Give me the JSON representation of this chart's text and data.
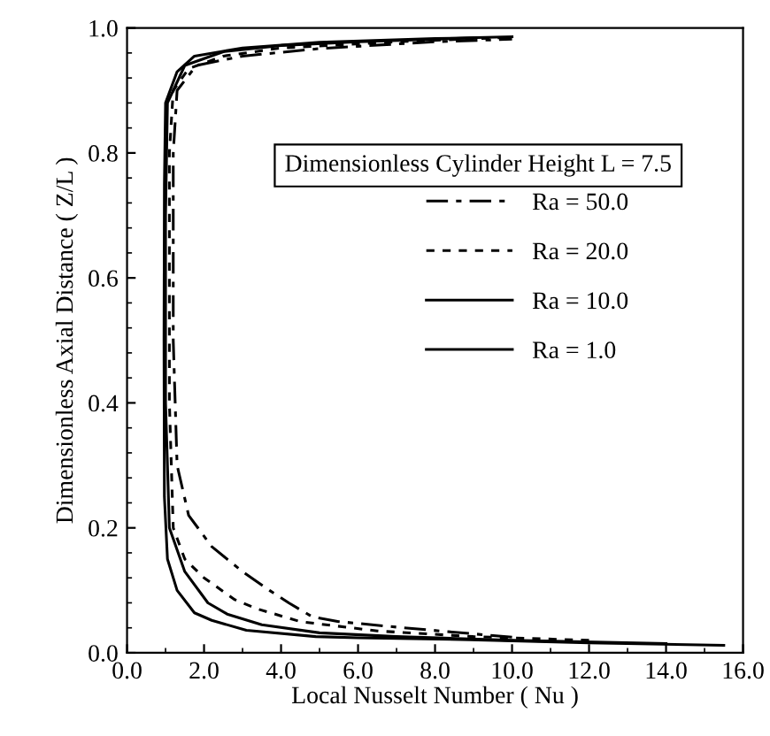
{
  "chart_data": {
    "type": "line",
    "xlabel": "Local Nusselt Number ( Nu )",
    "ylabel": "Dimensionless Axial Distance ( Z/L )",
    "annotations": [
      "Dimensionless Cylinder Height L = 7.5"
    ],
    "xlim": [
      0,
      16
    ],
    "ylim": [
      0,
      1
    ],
    "xticks": [
      {
        "value": 0,
        "label": "0.0"
      },
      {
        "value": 2,
        "label": "2.0"
      },
      {
        "value": 4,
        "label": "4.0"
      },
      {
        "value": 6,
        "label": "6.0"
      },
      {
        "value": 8,
        "label": "8.0"
      },
      {
        "value": 10,
        "label": "10.0"
      },
      {
        "value": 12,
        "label": "12.0"
      },
      {
        "value": 14,
        "label": "14.0"
      },
      {
        "value": 16,
        "label": "16.0"
      }
    ],
    "yticks": [
      {
        "value": 0,
        "label": "0.0"
      },
      {
        "value": 0.2,
        "label": "0.2"
      },
      {
        "value": 0.4,
        "label": "0.4"
      },
      {
        "value": 0.6,
        "label": "0.6"
      },
      {
        "value": 0.8,
        "label": "0.8"
      },
      {
        "value": 1,
        "label": "1.0"
      }
    ],
    "grid": false,
    "legend": "center right",
    "marker": "none",
    "series": [
      {
        "name": "Ra = 50.0",
        "color": "#000000",
        "line_style": "dashed",
        "x": [
          10,
          7.2,
          5.5,
          4.8,
          4.2,
          3.7,
          3,
          2.2,
          1.6,
          1.3,
          1.2,
          1.2,
          1.3,
          1.8,
          3,
          5,
          8,
          10
        ],
        "values": [
          0.025,
          0.04,
          0.05,
          0.058,
          0.08,
          0.1,
          0.13,
          0.17,
          0.22,
          0.3,
          0.5,
          0.8,
          0.9,
          0.94,
          0.955,
          0.967,
          0.978,
          0.982
        ]
      },
      {
        "name": "Ra = 20.0",
        "color": "#000000",
        "line_style": "dotted",
        "x": [
          12,
          9,
          6.5,
          4.5,
          3.4,
          2.8,
          2,
          1.5,
          1.2,
          1.1,
          1.1,
          1.2,
          1.6,
          2.5,
          4,
          7,
          10
        ],
        "values": [
          0.02,
          0.026,
          0.035,
          0.05,
          0.07,
          0.085,
          0.12,
          0.15,
          0.2,
          0.4,
          0.8,
          0.9,
          0.935,
          0.955,
          0.968,
          0.978,
          0.985
        ]
      },
      {
        "name": "Ra = 10.0",
        "color": "#000000",
        "line_style": "solid",
        "x": [
          14,
          10,
          7,
          5,
          3.5,
          2.6,
          2.1,
          1.5,
          1.1,
          1,
          1,
          1.05,
          1.5,
          2.5,
          4,
          6,
          9
        ],
        "values": [
          0.015,
          0.02,
          0.026,
          0.032,
          0.045,
          0.062,
          0.08,
          0.13,
          0.2,
          0.4,
          0.7,
          0.88,
          0.94,
          0.962,
          0.972,
          0.978,
          0.984
        ]
      },
      {
        "name": "Ra = 1.0",
        "color": "#000000",
        "line_style": "solid",
        "x": [
          15.5,
          12,
          8.9,
          6,
          4.9,
          3.1,
          2.2,
          1.75,
          1.3,
          1.05,
          0.97,
          0.96,
          0.97,
          1,
          1.3,
          1.75,
          3,
          5,
          8,
          10
        ],
        "values": [
          0.012,
          0.016,
          0.021,
          0.024,
          0.026,
          0.036,
          0.052,
          0.064,
          0.1,
          0.15,
          0.25,
          0.5,
          0.75,
          0.88,
          0.93,
          0.955,
          0.968,
          0.977,
          0.983,
          0.986
        ]
      }
    ]
  }
}
